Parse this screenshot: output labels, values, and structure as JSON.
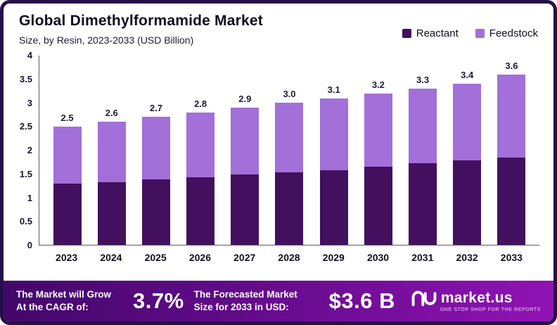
{
  "header": {
    "title": "Global Dimethylformamide Market",
    "subtitle": "Size, by Resin, 2023-2033 (USD Billion)"
  },
  "legend": [
    {
      "label": "Reactant",
      "color": "#42105e"
    },
    {
      "label": "Feedstock",
      "color": "#a36fd8"
    }
  ],
  "chart_data": {
    "type": "bar",
    "stacked": true,
    "title": "Global Dimethylformamide Market",
    "subtitle": "Size, by Resin, 2023-2033 (USD Billion)",
    "xlabel": "",
    "ylabel": "USD Billion",
    "ylim": [
      0,
      4
    ],
    "ytick_labels": [
      "4",
      "3.5",
      "3",
      "2.5",
      "2",
      "1.5",
      "1",
      "0.5",
      "0"
    ],
    "grid": false,
    "legend_position": "top-right",
    "categories": [
      "2023",
      "2024",
      "2025",
      "2026",
      "2027",
      "2028",
      "2029",
      "2030",
      "2031",
      "2032",
      "2033"
    ],
    "series": [
      {
        "name": "Reactant",
        "color": "#42105e",
        "values": [
          1.3,
          1.33,
          1.38,
          1.43,
          1.48,
          1.53,
          1.58,
          1.65,
          1.72,
          1.78,
          1.85
        ]
      },
      {
        "name": "Feedstock",
        "color": "#a36fd8",
        "values": [
          1.2,
          1.27,
          1.32,
          1.37,
          1.42,
          1.47,
          1.52,
          1.55,
          1.58,
          1.62,
          1.75
        ]
      }
    ],
    "totals": [
      2.5,
      2.6,
      2.7,
      2.8,
      2.9,
      3.0,
      3.1,
      3.2,
      3.3,
      3.4,
      3.6
    ],
    "total_labels": [
      "2.5",
      "2.6",
      "2.7",
      "2.8",
      "2.9",
      "3.0",
      "3.1",
      "3.2",
      "3.3",
      "3.4",
      "3.6"
    ]
  },
  "footer": {
    "cagr_label_line1": "The Market will Grow",
    "cagr_label_line2": "At the CAGR of:",
    "cagr_value": "3.7%",
    "forecast_label_line1": "The Forecasted Market",
    "forecast_label_line2": "Size for 2033 in USD:",
    "forecast_value": "$3.6 B",
    "brand": "market.us",
    "brand_tagline": "ONE STOP SHOP FOR THE REPORTS"
  },
  "colors": {
    "frame_border": "#23104a",
    "footer_gradient_start": "#43076a",
    "footer_gradient_end": "#9013b4",
    "reactant": "#42105e",
    "feedstock": "#a36fd8"
  }
}
